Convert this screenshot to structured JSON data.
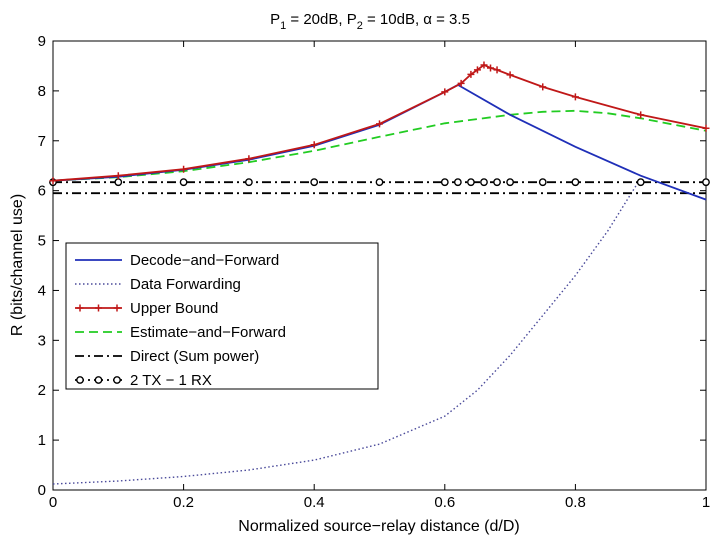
{
  "chart_data": {
    "type": "line",
    "title": "P1 = 20dB, P2 = 10dB, α = 3.5",
    "title_parts": {
      "p1": "P",
      "p1_sub": "1",
      "p1_val": " = 20dB, ",
      "p2": "P",
      "p2_sub": "2",
      "p2_val": " = 10dB, α = 3.5"
    },
    "xlabel": "Normalized source−relay distance (d/D)",
    "ylabel": "R (bits/channel use)",
    "xlim": [
      0,
      1
    ],
    "ylim": [
      0,
      9
    ],
    "xticks": [
      "0",
      "0.2",
      "0.4",
      "0.6",
      "0.8",
      "1"
    ],
    "xtick_values": [
      0,
      0.2,
      0.4,
      0.6,
      0.8,
      1
    ],
    "yticks": [
      "0",
      "1",
      "2",
      "3",
      "4",
      "5",
      "6",
      "7",
      "8",
      "9"
    ],
    "ytick_values": [
      0,
      1,
      2,
      3,
      4,
      5,
      6,
      7,
      8,
      9
    ],
    "grid": false,
    "legend_position": "center-left",
    "series": [
      {
        "name": "Decode−and−Forward",
        "color": "#1f2fb8",
        "style": "solid",
        "marker": "none",
        "x": [
          0,
          0.1,
          0.2,
          0.3,
          0.4,
          0.5,
          0.6,
          0.62,
          0.7,
          0.8,
          0.9,
          1.0
        ],
        "y": [
          6.2,
          6.28,
          6.42,
          6.62,
          6.9,
          7.32,
          7.98,
          8.12,
          7.52,
          6.88,
          6.3,
          5.82
        ]
      },
      {
        "name": "Data Forwarding",
        "color": "#4a4a9a",
        "style": "dotted",
        "marker": "none",
        "x": [
          0,
          0.1,
          0.2,
          0.3,
          0.4,
          0.5,
          0.6,
          0.65,
          0.7,
          0.75,
          0.8,
          0.85,
          0.9
        ],
        "y": [
          0.12,
          0.18,
          0.27,
          0.4,
          0.6,
          0.92,
          1.48,
          2.0,
          2.7,
          3.5,
          4.3,
          5.2,
          6.25
        ]
      },
      {
        "name": "Upper Bound",
        "color": "#c01818",
        "style": "solid",
        "marker": "plus",
        "x": [
          0,
          0.1,
          0.2,
          0.3,
          0.4,
          0.5,
          0.6,
          0.625,
          0.64,
          0.65,
          0.66,
          0.67,
          0.68,
          0.7,
          0.75,
          0.8,
          0.9,
          1.0
        ],
        "y": [
          6.2,
          6.3,
          6.43,
          6.64,
          6.92,
          7.34,
          7.98,
          8.15,
          8.33,
          8.42,
          8.52,
          8.46,
          8.42,
          8.32,
          8.08,
          7.88,
          7.52,
          7.25
        ]
      },
      {
        "name": "Estimate−and−Forward",
        "color": "#22cc22",
        "style": "dashed",
        "marker": "none",
        "x": [
          0,
          0.1,
          0.2,
          0.3,
          0.4,
          0.5,
          0.6,
          0.7,
          0.75,
          0.8,
          0.85,
          0.9,
          1.0
        ],
        "y": [
          6.2,
          6.27,
          6.39,
          6.57,
          6.8,
          7.08,
          7.35,
          7.52,
          7.58,
          7.6,
          7.55,
          7.45,
          7.2
        ]
      },
      {
        "name": "Direct (Sum power)",
        "color": "#000000",
        "style": "dashdot",
        "marker": "none",
        "x": [
          0,
          1
        ],
        "y": [
          5.95,
          5.95
        ]
      },
      {
        "name": "2 TX − 1 RX",
        "color": "#000000",
        "style": "dashdot",
        "marker": "circle",
        "x": [
          0,
          0.1,
          0.2,
          0.3,
          0.4,
          0.5,
          0.6,
          0.62,
          0.64,
          0.66,
          0.68,
          0.7,
          0.75,
          0.8,
          0.9,
          1.0
        ],
        "y": [
          6.17,
          6.17,
          6.17,
          6.17,
          6.17,
          6.17,
          6.17,
          6.17,
          6.17,
          6.17,
          6.17,
          6.17,
          6.17,
          6.17,
          6.17,
          6.17
        ]
      }
    ]
  }
}
